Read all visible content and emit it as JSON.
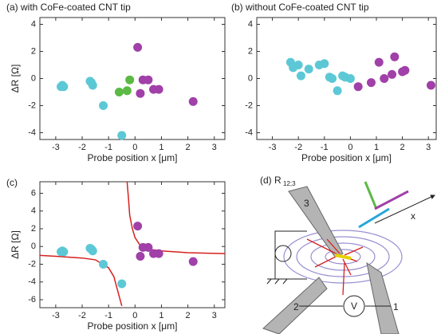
{
  "chart_data": [
    {
      "type": "scatter",
      "title": "(a) with CoFe-coated CNT tip",
      "x_label": "Probe position x [μm]",
      "y_label": "ΔR [Ω]",
      "xlim": [
        -3.6,
        3.4
      ],
      "ylim": [
        -4.5,
        4.5
      ],
      "xticks": [
        -3,
        -2,
        -1,
        0,
        1,
        2,
        3
      ],
      "yticks": [
        4,
        2,
        0,
        -2,
        -4
      ],
      "series": [
        {
          "type": "scatter",
          "color": "#5cc8d6",
          "x": [
            -2.8,
            -2.7,
            -2.75,
            -1.7,
            -1.6,
            -1.65,
            -1.2,
            -0.5
          ],
          "values": [
            -0.6,
            -0.6,
            -0.5,
            -0.2,
            -0.5,
            -0.3,
            -2.0,
            -4.2
          ]
        },
        {
          "type": "scatter",
          "color": "#5cb946",
          "x": [
            -0.6,
            -0.3,
            -0.2
          ],
          "values": [
            -1.0,
            -0.9,
            -0.1
          ]
        },
        {
          "type": "scatter",
          "color": "#a040a8",
          "x": [
            0.1,
            0.3,
            0.5,
            0.2,
            0.7,
            0.9,
            2.2
          ],
          "values": [
            2.3,
            -0.1,
            -0.1,
            -1.1,
            -0.8,
            -0.8,
            -1.7
          ]
        }
      ]
    },
    {
      "type": "scatter",
      "title": "(b) without CoFe-coated CNT tip",
      "x_label": "Probe position x [μm]",
      "xlim": [
        -3.6,
        3.3
      ],
      "ylim": [
        -4.5,
        4.5
      ],
      "xticks": [
        -3,
        -2,
        -1,
        0,
        1,
        2,
        3
      ],
      "yticks": [
        4,
        2,
        0,
        -2,
        -4
      ],
      "series": [
        {
          "type": "scatter",
          "color": "#5cc8d6",
          "x": [
            -2.3,
            -2.2,
            -2.0,
            -1.9,
            -1.6,
            -1.2,
            -1.0,
            -0.8,
            -0.7,
            -0.3,
            -0.5,
            0.0,
            -0.2
          ],
          "values": [
            1.2,
            0.8,
            1.0,
            0.2,
            0.7,
            1.0,
            1.1,
            0.1,
            0.0,
            0.2,
            -0.9,
            0.0,
            0.1
          ]
        },
        {
          "type": "scatter",
          "color": "#a040a8",
          "x": [
            0.3,
            0.8,
            1.1,
            1.3,
            1.6,
            1.7,
            2.0,
            2.1,
            3.1
          ],
          "values": [
            -0.6,
            -0.3,
            1.2,
            0.0,
            0.3,
            1.6,
            0.5,
            0.6,
            -0.5
          ]
        }
      ]
    },
    {
      "type": "scatter",
      "title": "(c)",
      "x_label": "Probe position x [μm]",
      "y_label": "ΔR [Ω]",
      "xlim": [
        -3.6,
        3.4
      ],
      "ylim": [
        -6.9,
        7.3
      ],
      "xticks": [
        -3,
        -2,
        -1,
        0,
        1,
        2,
        3
      ],
      "yticks": [
        6,
        4,
        2,
        0,
        -2,
        -4,
        -6
      ],
      "series": [
        {
          "type": "line",
          "color": "#d62020",
          "x": [
            -3.6,
            -3,
            -2,
            -1.5,
            -1,
            -0.8,
            -0.6,
            -0.5
          ],
          "values": [
            -1.0,
            -1.1,
            -1.3,
            -1.5,
            -2.4,
            -3.4,
            -5.6,
            -6.7
          ]
        },
        {
          "type": "line",
          "color": "#d62020",
          "x": [
            -0.3,
            -0.25,
            -0.2,
            -0.1,
            0,
            0.2,
            0.5,
            1,
            2,
            3.4
          ],
          "values": [
            7.3,
            5.5,
            3.5,
            2.0,
            1.0,
            0.1,
            -0.3,
            -0.5,
            -0.7,
            -0.8
          ]
        },
        {
          "type": "scatter",
          "color": "#5cc8d6",
          "x": [
            -2.8,
            -2.7,
            -2.75,
            -1.7,
            -1.6,
            -1.65,
            -1.2,
            -0.5
          ],
          "values": [
            -0.6,
            -0.6,
            -0.5,
            -0.2,
            -0.5,
            -0.3,
            -2.0,
            -4.2
          ]
        },
        {
          "type": "scatter",
          "color": "#a040a8",
          "x": [
            0.1,
            0.3,
            0.5,
            0.2,
            0.7,
            0.9,
            2.2
          ],
          "values": [
            2.3,
            -0.1,
            -0.1,
            -1.1,
            -0.8,
            -0.8,
            -1.7
          ]
        }
      ]
    }
  ],
  "diagram": {
    "label": "(d) R",
    "subscript": "12;3",
    "probe_3": "3",
    "probe_2": "2",
    "probe_1": "1",
    "voltmeter": "V",
    "axis": "x"
  }
}
